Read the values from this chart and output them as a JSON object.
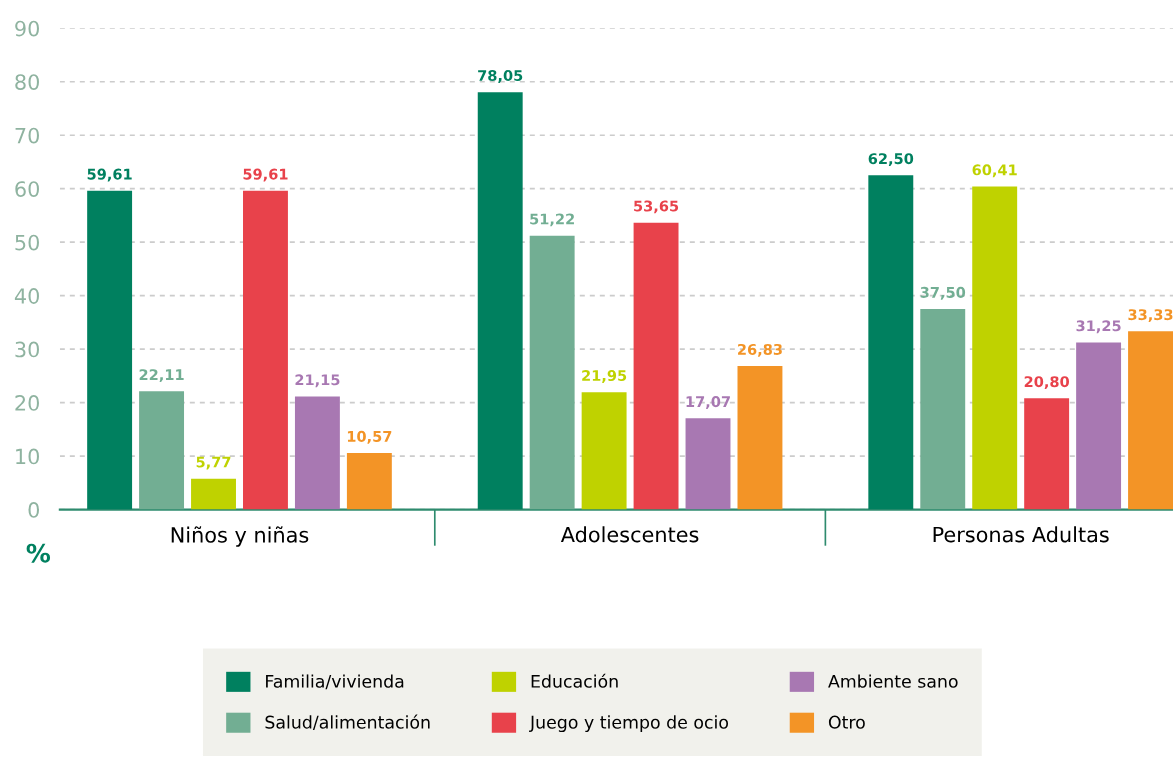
{
  "chart_data": {
    "type": "bar",
    "categories": [
      "Niños y niñas",
      "Adolescentes",
      "Personas Adultas"
    ],
    "ylabel": "%",
    "ylim": [
      0,
      90
    ],
    "yticks": [
      0,
      10,
      20,
      30,
      40,
      50,
      60,
      70,
      80,
      90
    ],
    "grid": "y",
    "legend": "bottom",
    "series": [
      {
        "name": "Familia/vivienda",
        "color": "#00805f",
        "values": [
          59.61,
          78.05,
          62.5
        ],
        "value_labels": [
          "59,61",
          "78,05",
          "62,50"
        ]
      },
      {
        "name": "Salud/alimentación",
        "color": "#72ae93",
        "values": [
          22.11,
          51.22,
          37.5
        ],
        "value_labels": [
          "22,11",
          "51,22",
          "37,50"
        ]
      },
      {
        "name": "Educación",
        "color": "#bfd200",
        "values": [
          5.77,
          21.95,
          60.41
        ],
        "value_labels": [
          "5,77",
          "21,95",
          "60,41"
        ]
      },
      {
        "name": "Juego y tiempo de ocio",
        "color": "#e8424b",
        "values": [
          59.61,
          53.65,
          20.8
        ],
        "value_labels": [
          "59,61",
          "53,65",
          "20,80"
        ]
      },
      {
        "name": "Ambiente sano",
        "color": "#a878b2",
        "values": [
          21.15,
          17.07,
          31.25
        ],
        "value_labels": [
          "21,15",
          "17,07",
          "31,25"
        ]
      },
      {
        "name": "Otro",
        "color": "#f39426",
        "values": [
          10.57,
          26.83,
          33.33
        ],
        "value_labels": [
          "10,57",
          "26,83",
          "33,33"
        ]
      }
    ]
  }
}
